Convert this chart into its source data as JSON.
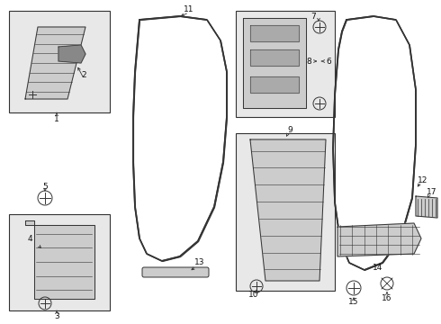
{
  "bg_color": "#ffffff",
  "line_color": "#333333",
  "label_color": "#111111",
  "shade_color": "#e8e8e8",
  "part_color": "#cccccc",
  "dark_color": "#888888",
  "fs": 6.5
}
